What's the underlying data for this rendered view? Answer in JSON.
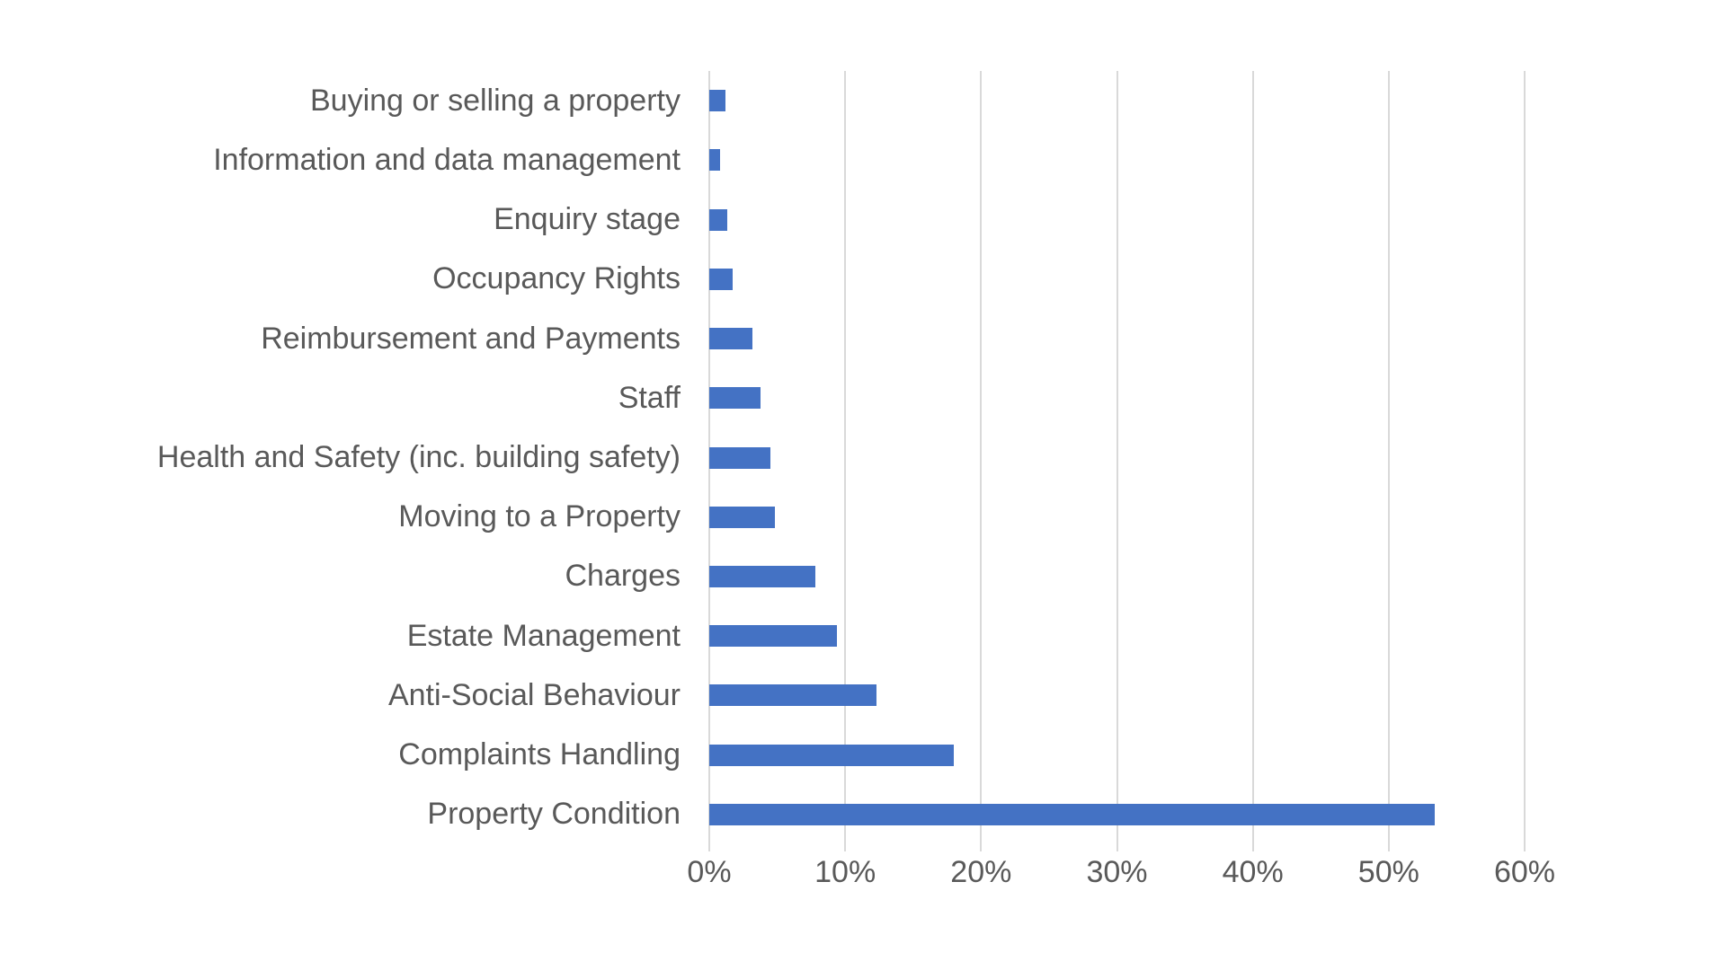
{
  "chart_data": {
    "type": "bar",
    "orientation": "horizontal",
    "title": "",
    "xlabel": "",
    "ylabel": "",
    "categories": [
      "Buying or selling a property",
      "Information and data management",
      "Enquiry stage",
      "Occupancy Rights",
      "Reimbursement and Payments",
      "Staff",
      "Health and Safety (inc. building safety)",
      "Moving to a Property",
      "Charges",
      "Estate Management",
      "Anti-Social Behaviour",
      "Complaints Handling",
      "Property Condition"
    ],
    "values": [
      1.2,
      0.8,
      1.3,
      1.7,
      3.2,
      3.8,
      4.5,
      4.8,
      7.8,
      9.4,
      12.3,
      18.0,
      53.4
    ],
    "xlim": [
      0,
      60
    ],
    "x_tick_labels": [
      "0%",
      "10%",
      "20%",
      "30%",
      "40%",
      "50%",
      "60%"
    ],
    "x_tick_values": [
      0,
      10,
      20,
      30,
      40,
      50,
      60
    ],
    "grid": "vertical-gridlines-on",
    "legend": "none",
    "colors": {
      "bar": "#4472C4",
      "gridline": "#D9D9D9",
      "axis_line": "#D9D9D9",
      "text": "#595959",
      "background": "#FFFFFF"
    }
  }
}
